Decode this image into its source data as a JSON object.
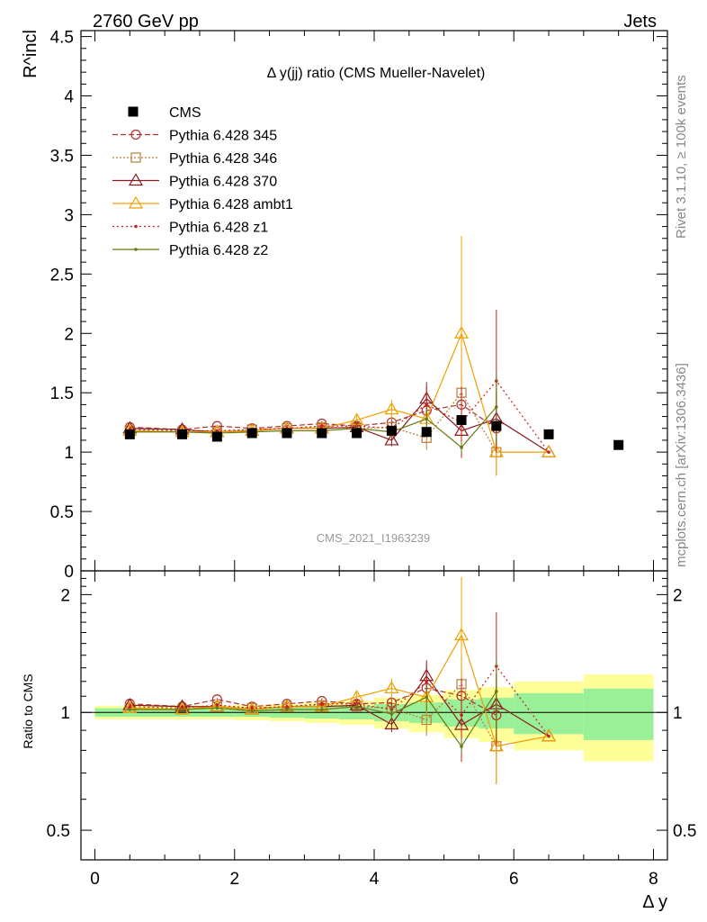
{
  "header": {
    "left_label": "2760 GeV pp",
    "right_label": "Jets",
    "side_label_top": "Rivet 3.1.10, ≥ 100k events",
    "side_label_bottom": "mcplots.cern.ch [arXiv:1306.3436]",
    "watermark": "CMS_2021_I1963239"
  },
  "chart_data": {
    "type": "line",
    "title": "Δ y(jj) ratio (CMS Mueller-Navelet)",
    "ylabel": "R^incl",
    "xlabel": "Δ y",
    "xlim": [
      -0.2,
      8.2
    ],
    "ylim": [
      0,
      4.55
    ],
    "y_ticks": [
      "0",
      "0.5",
      "1",
      "1.5",
      "2",
      "2.5",
      "3",
      "3.5",
      "4",
      "4.5"
    ],
    "x_ticks": [
      "0",
      "2",
      "4",
      "6",
      "8"
    ],
    "legend_position": "top-left",
    "cms": {
      "name": "CMS",
      "x": [
        0.5,
        1.25,
        1.75,
        2.25,
        2.75,
        3.25,
        3.75,
        4.25,
        4.75,
        5.25,
        5.75,
        6.5,
        7.5
      ],
      "y": [
        1.15,
        1.15,
        1.13,
        1.16,
        1.16,
        1.16,
        1.16,
        1.18,
        1.17,
        1.27,
        1.22,
        1.15,
        1.06
      ],
      "bin_edges": [
        0,
        1.0,
        1.5,
        2.0,
        2.5,
        3.0,
        3.5,
        4.0,
        4.5,
        5.0,
        5.5,
        6.0,
        7.0,
        8.0
      ]
    },
    "series": [
      {
        "name": "Pythia 6.428 345",
        "color": "#b03030",
        "dash": "6,3",
        "marker": "circle",
        "x": [
          0.5,
          1.25,
          1.75,
          2.25,
          2.75,
          3.25,
          3.75,
          4.25,
          4.75,
          5.25,
          5.75
        ],
        "y": [
          1.21,
          1.19,
          1.22,
          1.2,
          1.22,
          1.24,
          1.22,
          1.25,
          1.35,
          1.4,
          1.2
        ],
        "err": [
          0.01,
          0.01,
          0.01,
          0.01,
          0.01,
          0.02,
          0.02,
          0.05,
          0.12,
          0.25,
          0.25
        ]
      },
      {
        "name": "Pythia 6.428 346",
        "color": "#b87e3a",
        "dash": "2,2",
        "marker": "square",
        "x": [
          0.5,
          1.25,
          1.75,
          2.25,
          2.75,
          3.25,
          3.75,
          4.25,
          4.75,
          5.25,
          5.75
        ],
        "y": [
          1.18,
          1.17,
          1.17,
          1.19,
          1.2,
          1.21,
          1.2,
          1.21,
          1.12,
          1.5,
          1.0
        ],
        "err": [
          0.01,
          0.01,
          0.01,
          0.01,
          0.01,
          0.02,
          0.02,
          0.05,
          0.1,
          0.3,
          0.2
        ]
      },
      {
        "name": "Pythia 6.428 370",
        "color": "#8b1a1a",
        "dash": "",
        "marker": "triangle",
        "x": [
          0.5,
          1.25,
          1.75,
          2.25,
          2.75,
          3.25,
          3.75,
          4.25,
          4.75,
          5.25,
          5.75,
          6.5
        ],
        "y": [
          1.2,
          1.19,
          1.17,
          1.18,
          1.2,
          1.2,
          1.21,
          1.1,
          1.45,
          1.18,
          1.28,
          1.0
        ],
        "err": [
          0.01,
          0.01,
          0.01,
          0.01,
          0.01,
          0.02,
          0.02,
          0.05,
          0.14,
          0.2,
          0.25,
          0.0
        ]
      },
      {
        "name": "Pythia 6.428 ambt1",
        "color": "#f0a000",
        "dash": "",
        "marker": "triangle",
        "x": [
          0.5,
          1.25,
          1.75,
          2.25,
          2.75,
          3.25,
          3.75,
          4.25,
          4.75,
          5.25,
          5.75,
          6.5
        ],
        "y": [
          1.18,
          1.17,
          1.17,
          1.18,
          1.2,
          1.2,
          1.27,
          1.36,
          1.28,
          2.0,
          1.0,
          1.0
        ],
        "err": [
          0.01,
          0.01,
          0.01,
          0.01,
          0.01,
          0.02,
          0.04,
          0.08,
          0.15,
          0.82,
          0.2,
          0.0
        ]
      },
      {
        "name": "Pythia 6.428 z1",
        "color": "#c82020",
        "dash": "2,3",
        "marker": "dot",
        "x": [
          0.5,
          1.25,
          1.75,
          2.25,
          2.75,
          3.25,
          3.75,
          4.25,
          4.75,
          5.25,
          5.75,
          6.5
        ],
        "y": [
          1.19,
          1.18,
          1.18,
          1.19,
          1.2,
          1.22,
          1.22,
          1.2,
          1.4,
          1.25,
          1.6,
          1.0
        ],
        "err": [
          0.01,
          0.01,
          0.01,
          0.01,
          0.01,
          0.02,
          0.03,
          0.05,
          0.15,
          0.3,
          0.6,
          0.0
        ]
      },
      {
        "name": "Pythia 6.428 z2",
        "color": "#6b7a10",
        "dash": "",
        "marker": "dot",
        "x": [
          0.5,
          1.25,
          1.75,
          2.25,
          2.75,
          3.25,
          3.75,
          4.25,
          4.75,
          5.25,
          5.75
        ],
        "y": [
          1.17,
          1.17,
          1.16,
          1.17,
          1.18,
          1.18,
          1.2,
          1.17,
          1.28,
          1.04,
          1.38
        ],
        "err": [
          0.01,
          0.01,
          0.01,
          0.01,
          0.01,
          0.02,
          0.03,
          0.05,
          0.1,
          0.05,
          0.3
        ]
      }
    ],
    "ratio_panel": {
      "ylabel": "Ratio to CMS",
      "ylim": [
        0.42,
        2.3
      ],
      "y_ticks": [
        "0.5",
        "1",
        "2"
      ],
      "band_inner": [
        0.025,
        0.025,
        0.025,
        0.025,
        0.03,
        0.035,
        0.04,
        0.05,
        0.06,
        0.08,
        0.09,
        0.12,
        0.15
      ],
      "band_outer": [
        0.04,
        0.04,
        0.04,
        0.045,
        0.05,
        0.06,
        0.07,
        0.09,
        0.11,
        0.14,
        0.16,
        0.2,
        0.25
      ]
    }
  }
}
